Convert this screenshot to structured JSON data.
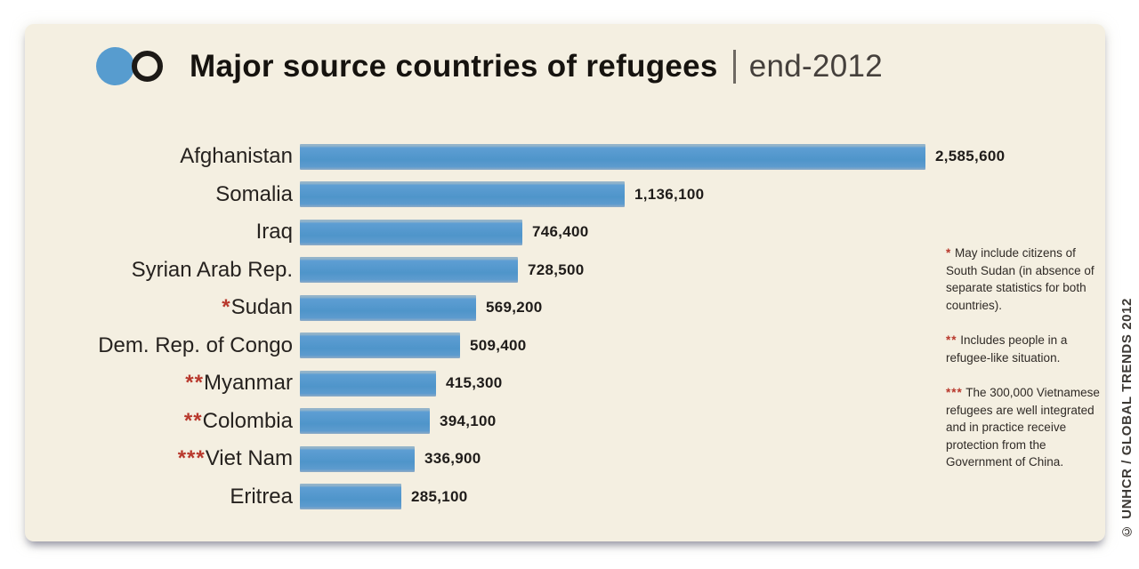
{
  "header": {
    "title": "Major source countries of refugees",
    "subtitle": "end-2012",
    "icon": {
      "filled_circle_color": "#579ccf",
      "ring_color": "#1d1a17"
    }
  },
  "chart_data": {
    "type": "bar",
    "orientation": "horizontal",
    "title": "Major source countries of refugees | end-2012",
    "categories": [
      "Afghanistan",
      "Somalia",
      "Iraq",
      "Syrian Arab Rep.",
      "Sudan",
      "Dem. Rep. of Congo",
      "Myanmar",
      "Colombia",
      "Viet Nam",
      "Eritrea"
    ],
    "category_prefixes": [
      "",
      "",
      "",
      "",
      "*",
      "",
      "**",
      "**",
      "***",
      ""
    ],
    "values": [
      2585600,
      1136100,
      746400,
      728500,
      569200,
      509400,
      415300,
      394100,
      336900,
      285100
    ],
    "value_labels": [
      "2,585,600",
      "1,136,100",
      "746,400",
      "728,500",
      "569,200",
      "509,400",
      "415,300",
      "394,100",
      "336,900",
      "285,100"
    ],
    "xlabel": "",
    "ylabel": "",
    "xlim": [
      0,
      2585600
    ],
    "grid": false,
    "legend": false,
    "bar_color": "#579ccf",
    "value_label_position": "end-of-bar"
  },
  "footnotes": [
    {
      "marker": "*",
      "text": " May include citizens of South Sudan (in absence of separate statistics for both countries)."
    },
    {
      "marker": "**",
      "text": " Includes people in a refugee-like situation."
    },
    {
      "marker": "***",
      "text": " The 300,000 Vietnamese refugees are well integrated and in practice receive protection from the Government of China."
    }
  ],
  "credit": "© UNHCR / GLOBAL TRENDS 2012",
  "colors": {
    "panel_background": "#f4efe1",
    "bar_blue": "#579ccf",
    "footnote_marker_red": "#b8382c",
    "title_text": "#16130f"
  }
}
